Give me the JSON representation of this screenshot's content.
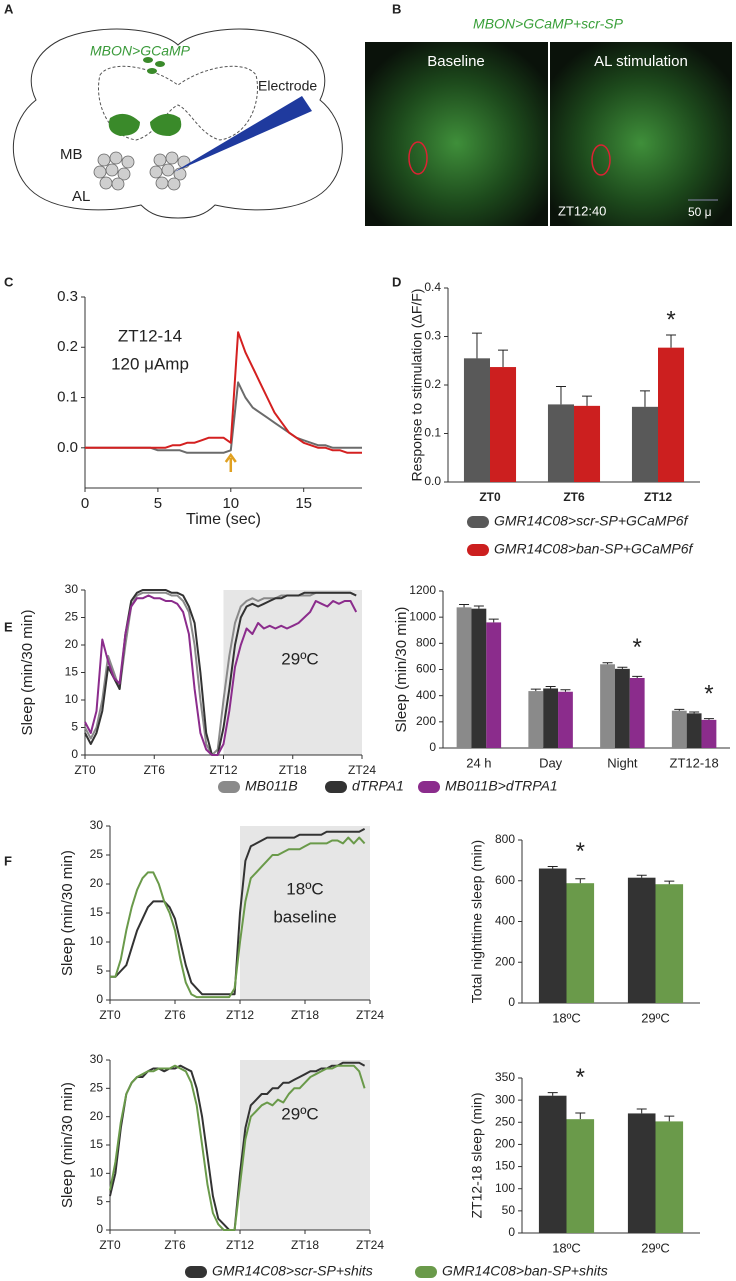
{
  "figure": {
    "panel_labels": [
      "A",
      "B",
      "C",
      "D",
      "E",
      "F"
    ],
    "diagram": {
      "label": "MBON>GCaMP",
      "electrode": "Electrode",
      "mb": "MB",
      "al": "AL"
    },
    "micrograph": {
      "title": "MBON>GCaMP+scr-SP",
      "left": "Baseline",
      "right": "AL stimulation",
      "time": "ZT12:40",
      "scale": "50 μ"
    }
  },
  "chart_data": [
    {
      "type": "line",
      "x": [
        0,
        0.5,
        1,
        1.5,
        2,
        2.5,
        3,
        3.5,
        4,
        4.5,
        5,
        5.5,
        6,
        6.5,
        7,
        7.5,
        8,
        8.5,
        9,
        9.5,
        10,
        10.5,
        11,
        11.5,
        12,
        12.5,
        13,
        13.5,
        14,
        14.5,
        15,
        15.5,
        16,
        16.5,
        17,
        17.5,
        18,
        18.5,
        19
      ],
      "xlim": [
        0,
        19
      ],
      "xticks": [
        0,
        5,
        10,
        15
      ],
      "ylim": [
        -0.08,
        0.3
      ],
      "yticks": [
        {
          "value": 0,
          "label": "0.0"
        },
        0.1,
        0.2,
        0.3
      ],
      "xlabel": "Time (sec)",
      "annotations": [
        "ZT12-14",
        "120 μAmp"
      ],
      "stimulus": 10,
      "series": [
        {
          "color": "#6b6b6b",
          "values": [
            0,
            0,
            0,
            0,
            0,
            0,
            0,
            0,
            0,
            0,
            -0.005,
            -0.005,
            -0.005,
            -0.005,
            -0.01,
            -0.01,
            -0.01,
            -0.01,
            -0.01,
            -0.01,
            -0.005,
            0.13,
            0.1,
            0.08,
            0.07,
            0.06,
            0.05,
            0.04,
            0.03,
            0.02,
            0.015,
            0.01,
            0.005,
            0.005,
            0,
            0,
            0,
            0,
            0
          ]
        },
        {
          "color": "#d42020",
          "values": [
            0,
            0,
            0,
            0,
            0,
            0,
            0,
            0,
            0,
            0,
            0,
            0,
            0.005,
            0.005,
            0.01,
            0.01,
            0.015,
            0.02,
            0.02,
            0.02,
            0.01,
            0.23,
            0.19,
            0.16,
            0.13,
            0.1,
            0.07,
            0.05,
            0.03,
            0.02,
            0.01,
            0.005,
            0,
            0,
            -0.005,
            -0.005,
            -0.01,
            -0.01,
            -0.01
          ]
        }
      ]
    },
    {
      "type": "bar",
      "categories": [
        "ZT0",
        "ZT6",
        "ZT12"
      ],
      "ylim": [
        0,
        0.4
      ],
      "yticks": [
        {
          "value": 0,
          "label": "0.0"
        },
        0.1,
        0.2,
        0.3,
        0.4
      ],
      "ylabel": "Response to stimulation (ΔF/F)",
      "significance": [
        null,
        null,
        "*"
      ],
      "series": [
        {
          "name": "GMR14C08>scr-SP+GCaMP6f",
          "color": "#595959",
          "values": [
            0.255,
            0.16,
            0.155
          ],
          "errors": [
            0.052,
            0.037,
            0.033
          ]
        },
        {
          "name": "GMR14C08>ban-SP+GCaMP6f",
          "color": "#cc1f1f",
          "values": [
            0.237,
            0.157,
            0.277
          ],
          "errors": [
            0.035,
            0.02,
            0.026
          ]
        }
      ]
    },
    {
      "type": "line",
      "x": [
        0,
        0.5,
        1,
        1.5,
        2,
        2.5,
        3,
        3.5,
        4,
        4.5,
        5,
        5.5,
        6,
        6.5,
        7,
        7.5,
        8,
        8.5,
        9,
        9.5,
        10,
        10.5,
        11,
        11.5,
        12,
        12.5,
        13,
        13.5,
        14,
        14.5,
        15,
        15.5,
        16,
        16.5,
        17,
        17.5,
        18,
        18.5,
        19,
        19.5,
        20,
        20.5,
        21,
        21.5,
        22,
        22.5,
        23,
        23.5
      ],
      "xlim": [
        0,
        24
      ],
      "xticks": [
        {
          "value": 0,
          "label": "ZT0"
        },
        {
          "value": 6,
          "label": "ZT6"
        },
        {
          "value": 12,
          "label": "ZT12"
        },
        {
          "value": 18,
          "label": "ZT18"
        },
        {
          "value": 24,
          "label": "ZT24"
        }
      ],
      "ylim": [
        0,
        30
      ],
      "yticks": [
        0,
        5,
        10,
        15,
        20,
        25,
        30
      ],
      "ylabel": "Sleep (min/30 min)",
      "annotations": [
        "29ºC"
      ],
      "shade": [
        12,
        24
      ],
      "series": [
        {
          "name": "MB011B",
          "color": "#8a8a8a",
          "values": [
            5,
            3,
            5,
            10,
            18,
            15,
            12,
            20,
            27,
            29,
            29.5,
            29.5,
            29.5,
            29.5,
            29.5,
            29,
            29,
            28,
            26,
            20,
            10,
            2,
            0,
            1,
            10,
            18,
            24,
            27,
            28,
            28.5,
            28,
            28.5,
            28.5,
            28.5,
            29,
            29,
            29,
            29,
            29,
            29,
            29.5,
            29.5,
            29.5,
            29.5,
            29.5,
            29.5,
            29.5,
            29
          ]
        },
        {
          "name": "dTRPA1",
          "color": "#333333",
          "values": [
            4,
            2,
            4,
            8,
            16,
            14,
            12,
            22,
            28,
            29.5,
            30,
            30,
            30,
            30,
            30,
            29.5,
            29.5,
            29,
            27,
            24,
            15,
            4,
            0,
            0,
            5,
            12,
            20,
            25,
            27,
            27.5,
            27,
            27.5,
            28,
            28.5,
            28.5,
            29,
            29,
            29,
            29.5,
            29.5,
            29.5,
            29.5,
            29.5,
            29.5,
            29.5,
            29.5,
            29.5,
            29
          ]
        },
        {
          "name": "MB011B>dTRPA1",
          "color": "#8b2c8c",
          "values": [
            6,
            4,
            8,
            21,
            17,
            14,
            13,
            22,
            27,
            28.5,
            28.5,
            29,
            28.5,
            28.5,
            28,
            28,
            27.5,
            26,
            22,
            12,
            4,
            1,
            0,
            0,
            2,
            8,
            16,
            20,
            23,
            22,
            24,
            23,
            23.5,
            23,
            23.5,
            23,
            23.5,
            24,
            25,
            26,
            28,
            27.5,
            27,
            28,
            27.5,
            28,
            28,
            26
          ]
        }
      ]
    },
    {
      "type": "bar",
      "categories": [
        "24 h",
        "Day",
        "Night",
        "ZT12-18"
      ],
      "ylim": [
        0,
        1200
      ],
      "yticks": [
        0,
        200,
        400,
        600,
        800,
        1000,
        1200
      ],
      "ylabel": "Sleep (min/30 min)",
      "significance": [
        null,
        null,
        "*",
        "*"
      ],
      "series": [
        {
          "color": "#8a8a8a",
          "values": [
            1075,
            435,
            640,
            285
          ],
          "errors": [
            22,
            15,
            12,
            10
          ]
        },
        {
          "color": "#333333",
          "values": [
            1065,
            455,
            605,
            265
          ],
          "errors": [
            20,
            15,
            12,
            10
          ]
        },
        {
          "color": "#8b2c8c",
          "values": [
            960,
            430,
            535,
            215
          ],
          "errors": [
            25,
            15,
            12,
            10
          ]
        }
      ]
    },
    {
      "type": "line",
      "x": [
        0,
        0.5,
        1,
        1.5,
        2,
        2.5,
        3,
        3.5,
        4,
        4.5,
        5,
        5.5,
        6,
        6.5,
        7,
        7.5,
        8,
        8.5,
        9,
        9.5,
        10,
        10.5,
        11,
        11.5,
        12,
        12.5,
        13,
        13.5,
        14,
        14.5,
        15,
        15.5,
        16,
        16.5,
        17,
        17.5,
        18,
        18.5,
        19,
        19.5,
        20,
        20.5,
        21,
        21.5,
        22,
        22.5,
        23,
        23.5
      ],
      "xlim": [
        0,
        24
      ],
      "xticks": [
        {
          "value": 0,
          "label": "ZT0"
        },
        {
          "value": 6,
          "label": "ZT6"
        },
        {
          "value": 12,
          "label": "ZT12"
        },
        {
          "value": 18,
          "label": "ZT18"
        },
        {
          "value": 24,
          "label": "ZT24"
        }
      ],
      "ylim": [
        0,
        30
      ],
      "yticks": [
        0,
        5,
        10,
        15,
        20,
        25,
        30
      ],
      "ylabel": "Sleep (min/30 min)",
      "annotations": [
        "18ºC",
        "baseline"
      ],
      "shade": [
        12,
        24
      ],
      "series": [
        {
          "name": "GMR14C08>scr-SP+shits",
          "color": "#333333",
          "values": [
            4,
            4,
            5,
            6,
            9,
            12,
            14,
            16,
            17,
            17,
            17,
            16,
            14,
            10,
            6,
            3,
            2,
            1,
            1,
            1,
            1,
            1,
            1,
            1,
            15,
            24,
            26.5,
            27,
            27.5,
            28,
            28,
            28,
            28,
            28,
            28,
            28.5,
            28.5,
            28.5,
            28.5,
            28.5,
            29,
            29,
            29,
            29,
            29,
            29,
            29,
            29.5
          ]
        },
        {
          "name": "GMR14C08>ban-SP+shits",
          "color": "#6a9a4a",
          "values": [
            4,
            4,
            7,
            12,
            16,
            19,
            21,
            22,
            22,
            20,
            17,
            15,
            12,
            7,
            3,
            1,
            0.5,
            0.5,
            0.5,
            0.5,
            0.5,
            0.5,
            0.5,
            2,
            10,
            17,
            21,
            22,
            23,
            24,
            25,
            25,
            25.5,
            26,
            26,
            26,
            26.5,
            27,
            27,
            27,
            27,
            27.5,
            27.5,
            27,
            28,
            27,
            28,
            27
          ]
        }
      ]
    },
    {
      "type": "bar",
      "categories": [
        "18ºC",
        "29ºC"
      ],
      "ylim": [
        0,
        800
      ],
      "yticks": [
        0,
        200,
        400,
        600,
        800
      ],
      "ylabel": "Total nighttime sleep (min)",
      "significance": [
        "*",
        null
      ],
      "series": [
        {
          "color": "#333333",
          "values": [
            660,
            615
          ],
          "errors": [
            10,
            12
          ]
        },
        {
          "color": "#6a9a4a",
          "values": [
            588,
            583
          ],
          "errors": [
            22,
            15
          ]
        }
      ]
    },
    {
      "type": "line",
      "x": [
        0,
        0.5,
        1,
        1.5,
        2,
        2.5,
        3,
        3.5,
        4,
        4.5,
        5,
        5.5,
        6,
        6.5,
        7,
        7.5,
        8,
        8.5,
        9,
        9.5,
        10,
        10.5,
        11,
        11.5,
        12,
        12.5,
        13,
        13.5,
        14,
        14.5,
        15,
        15.5,
        16,
        16.5,
        17,
        17.5,
        18,
        18.5,
        19,
        19.5,
        20,
        20.5,
        21,
        21.5,
        22,
        22.5,
        23,
        23.5
      ],
      "xlim": [
        0,
        24
      ],
      "xticks": [
        {
          "value": 0,
          "label": "ZT0"
        },
        {
          "value": 6,
          "label": "ZT6"
        },
        {
          "value": 12,
          "label": "ZT12"
        },
        {
          "value": 18,
          "label": "ZT18"
        },
        {
          "value": 24,
          "label": "ZT24"
        }
      ],
      "ylim": [
        0,
        30
      ],
      "yticks": [
        0,
        5,
        10,
        15,
        20,
        25,
        30
      ],
      "ylabel": "Sleep (min/30 min)",
      "annotations": [
        "29ºC"
      ],
      "shade": [
        12,
        24
      ],
      "series": [
        {
          "color": "#333333",
          "values": [
            6,
            10,
            18,
            24,
            26,
            27,
            27,
            28,
            28.5,
            28.5,
            28,
            28.5,
            28.5,
            29,
            28.5,
            28,
            25,
            20,
            13,
            6,
            2,
            1,
            0,
            0,
            10,
            18,
            22,
            23,
            24,
            24,
            25,
            25,
            26,
            26,
            26.5,
            27,
            27.5,
            28,
            28,
            28.5,
            28.5,
            29,
            29,
            29.5,
            29.5,
            29.5,
            29.5,
            29
          ]
        },
        {
          "color": "#6a9a4a",
          "values": [
            7,
            12,
            19,
            24,
            26,
            27,
            27.5,
            28,
            28,
            28.5,
            28.5,
            28.5,
            29,
            28.5,
            28,
            26,
            22,
            15,
            8,
            3,
            1,
            0,
            0,
            0,
            8,
            16,
            20,
            21,
            22,
            22.5,
            22,
            23,
            22.5,
            24,
            25,
            25,
            26,
            27,
            27.5,
            28,
            28.5,
            28.5,
            29,
            29,
            29,
            29,
            28,
            25
          ]
        }
      ]
    },
    {
      "type": "bar",
      "categories": [
        "18ºC",
        "29ºC"
      ],
      "ylim": [
        0,
        350
      ],
      "yticks": [
        0,
        50,
        100,
        150,
        200,
        250,
        300,
        350
      ],
      "ylabel": "ZT12-18 sleep (min)",
      "significance": [
        "*",
        null
      ],
      "series": [
        {
          "color": "#333333",
          "values": [
            310,
            270
          ],
          "errors": [
            7,
            10
          ]
        },
        {
          "color": "#6a9a4a",
          "values": [
            257,
            252
          ],
          "errors": [
            14,
            12
          ]
        }
      ]
    }
  ]
}
